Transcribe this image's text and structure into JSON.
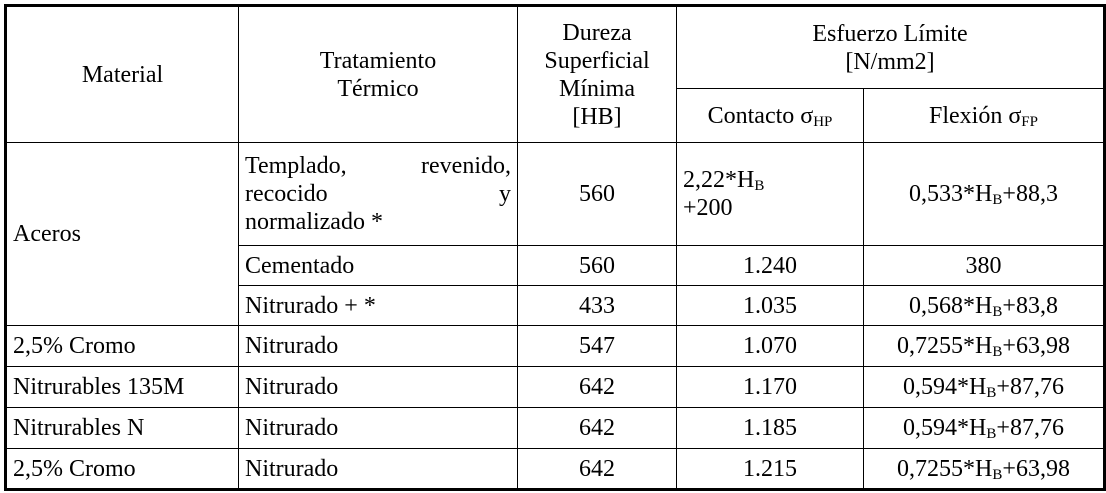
{
  "header": {
    "material": "Material",
    "tratamiento_l1": "Tratamiento",
    "tratamiento_l2": "Térmico",
    "dureza_l1": "Dureza",
    "dureza_l2": "Superficial",
    "dureza_l3": "Mínima",
    "dureza_l4": "[HB]",
    "esfuerzo_l1": "Esfuerzo Límite",
    "esfuerzo_l2": "[N/mm2]",
    "contacto_label": "Contacto σ",
    "contacto_sub": "HP",
    "flexion_label": "Flexión σ",
    "flexion_sub": "FP"
  },
  "aceros": {
    "material": "Aceros",
    "row1": {
      "trat_l1a": "Templado,",
      "trat_l1b": "revenido,",
      "trat_l2a": "recocido",
      "trat_l2b": "y",
      "trat_l3": "normalizado *",
      "dureza": "560",
      "contacto_a": "2,22*H",
      "contacto_sub": "B",
      "contacto_b": "+200",
      "flexion_a": "0,533*H",
      "flexion_sub": "B",
      "flexion_b": "+88,3"
    },
    "row2": {
      "trat": "Cementado",
      "dureza": "560",
      "contacto": "1.240",
      "flexion": "380"
    },
    "row3": {
      "trat": "Nitrurado + *",
      "dureza": "433",
      "contacto": "1.035",
      "flexion_a": "0,568*H",
      "flexion_sub": "B",
      "flexion_b": "+83,8"
    }
  },
  "rows": [
    {
      "material": "2,5% Cromo",
      "trat": "Nitrurado",
      "dureza": "547",
      "contacto": "1.070",
      "flexion_a": "0,7255*H",
      "flexion_sub": "B",
      "flexion_b": "+63,98"
    },
    {
      "material": "Nitrurables 135M",
      "trat": "Nitrurado",
      "dureza": "642",
      "contacto": "1.170",
      "flexion_a": "0,594*H",
      "flexion_sub": "B",
      "flexion_b": "+87,76"
    },
    {
      "material": "Nitrurables N",
      "trat": "Nitrurado",
      "dureza": "642",
      "contacto": "1.185",
      "flexion_a": "0,594*H",
      "flexion_sub": "B",
      "flexion_b": "+87,76"
    },
    {
      "material": "2,5% Cromo",
      "trat": "Nitrurado",
      "dureza": "642",
      "contacto": "1.215",
      "flexion_a": "0,7255*H",
      "flexion_sub": "B",
      "flexion_b": "+63,98"
    }
  ]
}
